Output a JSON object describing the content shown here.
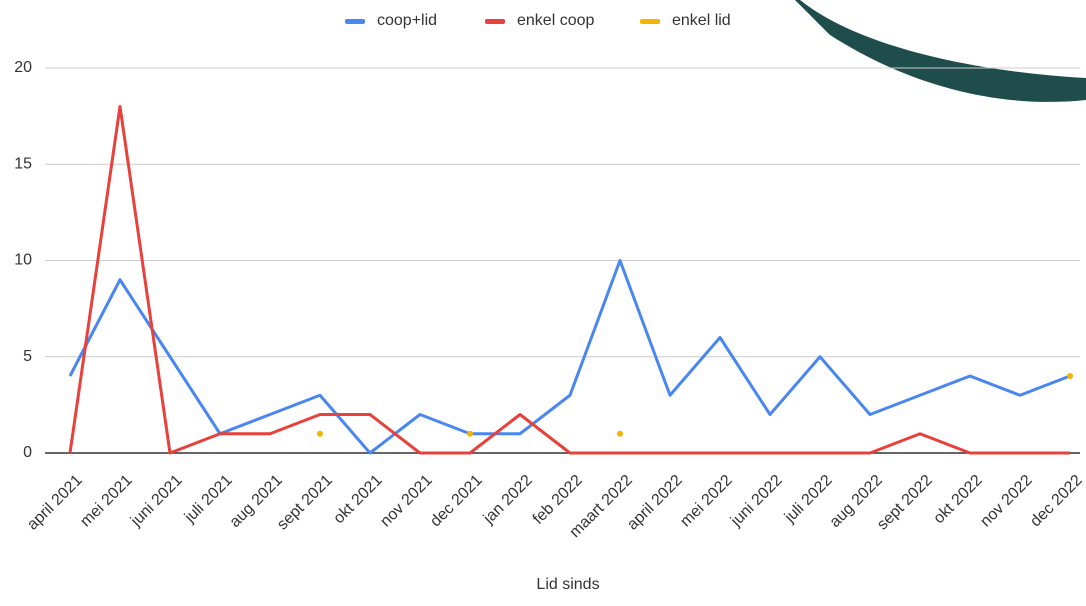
{
  "chart_data": {
    "type": "line",
    "categories": [
      "april 2021",
      "mei 2021",
      "juni 2021",
      "juli 2021",
      "aug 2021",
      "sept 2021",
      "okt 2021",
      "nov 2021",
      "dec 2021",
      "jan 2022",
      "feb 2022",
      "maart 2022",
      "april 2022",
      "mei 2022",
      "juni 2022",
      "juli 2022",
      "aug 2022",
      "sept 2022",
      "okt 2022",
      "nov 2022",
      "dec 2022"
    ],
    "series": [
      {
        "name": "coop+lid",
        "color": "#4a86f0",
        "values": [
          4,
          9,
          5,
          1,
          2,
          3,
          0,
          2,
          1,
          1,
          3,
          10,
          3,
          6,
          2,
          5,
          2,
          3,
          4,
          3,
          4
        ]
      },
      {
        "name": "enkel coop",
        "color": "#e8413c",
        "values": [
          0,
          18,
          0,
          1,
          1,
          2,
          2,
          0,
          0,
          2,
          0,
          0,
          0,
          0,
          0,
          0,
          0,
          1,
          0,
          0,
          0
        ]
      },
      {
        "name": "enkel lid",
        "color": "#f5b400",
        "values": [
          null,
          null,
          null,
          null,
          null,
          1,
          null,
          null,
          1,
          null,
          null,
          1,
          null,
          null,
          null,
          null,
          null,
          null,
          null,
          null,
          4
        ]
      }
    ],
    "x_label": "Lid sinds",
    "ylim": [
      0,
      20
    ],
    "yticks": [
      0,
      5,
      10,
      15,
      20
    ],
    "grid": true
  }
}
